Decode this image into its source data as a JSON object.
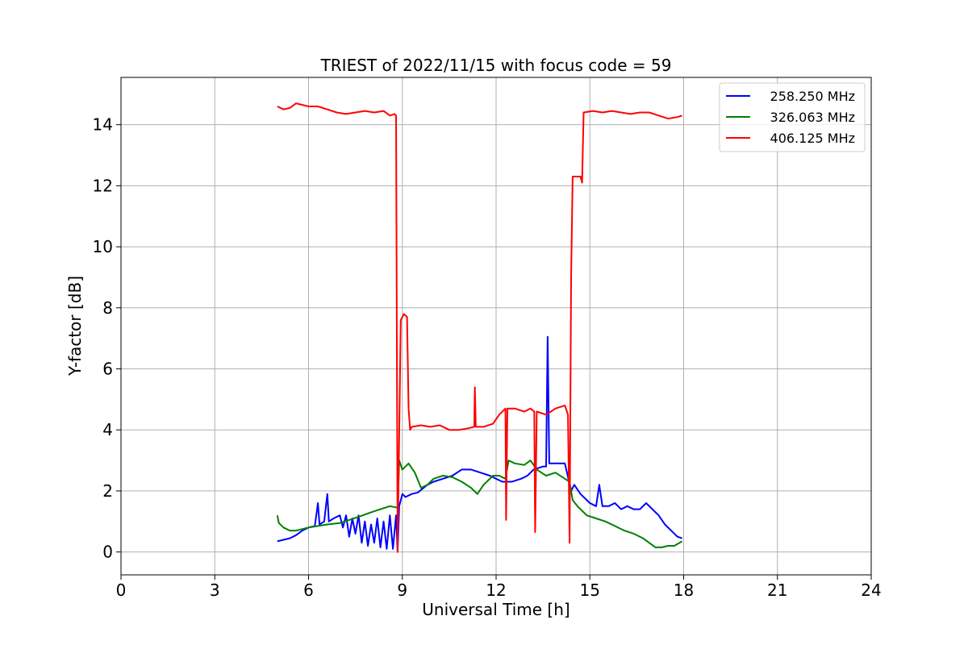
{
  "chart_data": {
    "type": "line",
    "title": "TRIEST of 2022/11/15 with focus code = 59",
    "xlabel": "Universal Time [h]",
    "ylabel": "Y-factor [dB]",
    "xlim": [
      0,
      24
    ],
    "ylim": [
      -0.75,
      15.55
    ],
    "xticks": [
      0,
      3,
      6,
      9,
      12,
      15,
      18,
      21,
      24
    ],
    "yticks": [
      0,
      2,
      4,
      6,
      8,
      10,
      12,
      14
    ],
    "grid": true,
    "legend_position": "top-right",
    "series": [
      {
        "name": "258.250 MHz",
        "color": "#0000ff",
        "points": [
          [
            5.0,
            0.35
          ],
          [
            5.2,
            0.4
          ],
          [
            5.4,
            0.45
          ],
          [
            5.6,
            0.55
          ],
          [
            5.8,
            0.7
          ],
          [
            6.0,
            0.8
          ],
          [
            6.2,
            0.85
          ],
          [
            6.3,
            1.6
          ],
          [
            6.35,
            0.9
          ],
          [
            6.5,
            1.0
          ],
          [
            6.6,
            1.9
          ],
          [
            6.65,
            1.0
          ],
          [
            6.8,
            1.1
          ],
          [
            7.0,
            1.2
          ],
          [
            7.1,
            0.8
          ],
          [
            7.2,
            1.2
          ],
          [
            7.3,
            0.5
          ],
          [
            7.4,
            1.1
          ],
          [
            7.5,
            0.6
          ],
          [
            7.6,
            1.2
          ],
          [
            7.7,
            0.3
          ],
          [
            7.8,
            1.0
          ],
          [
            7.9,
            0.2
          ],
          [
            8.0,
            0.9
          ],
          [
            8.1,
            0.3
          ],
          [
            8.2,
            1.1
          ],
          [
            8.3,
            0.15
          ],
          [
            8.4,
            1.0
          ],
          [
            8.5,
            0.1
          ],
          [
            8.6,
            1.2
          ],
          [
            8.7,
            0.1
          ],
          [
            8.8,
            1.2
          ],
          [
            8.85,
            0.0
          ],
          [
            8.9,
            1.5
          ],
          [
            9.0,
            1.9
          ],
          [
            9.1,
            1.8
          ],
          [
            9.3,
            1.9
          ],
          [
            9.5,
            1.95
          ],
          [
            9.8,
            2.2
          ],
          [
            10.0,
            2.3
          ],
          [
            10.3,
            2.4
          ],
          [
            10.6,
            2.5
          ],
          [
            10.9,
            2.7
          ],
          [
            11.2,
            2.7
          ],
          [
            11.5,
            2.6
          ],
          [
            11.8,
            2.5
          ],
          [
            12.0,
            2.4
          ],
          [
            12.2,
            2.3
          ],
          [
            12.5,
            2.3
          ],
          [
            12.8,
            2.4
          ],
          [
            13.0,
            2.5
          ],
          [
            13.2,
            2.7
          ],
          [
            13.5,
            2.8
          ],
          [
            13.6,
            2.8
          ],
          [
            13.65,
            7.05
          ],
          [
            13.7,
            2.9
          ],
          [
            13.9,
            2.9
          ],
          [
            14.2,
            2.9
          ],
          [
            14.4,
            2.0
          ],
          [
            14.5,
            2.2
          ],
          [
            14.7,
            1.9
          ],
          [
            15.0,
            1.6
          ],
          [
            15.2,
            1.5
          ],
          [
            15.3,
            2.2
          ],
          [
            15.4,
            1.5
          ],
          [
            15.6,
            1.5
          ],
          [
            15.8,
            1.6
          ],
          [
            16.0,
            1.4
          ],
          [
            16.2,
            1.5
          ],
          [
            16.4,
            1.4
          ],
          [
            16.6,
            1.4
          ],
          [
            16.8,
            1.6
          ],
          [
            17.0,
            1.4
          ],
          [
            17.2,
            1.2
          ],
          [
            17.4,
            0.9
          ],
          [
            17.6,
            0.7
          ],
          [
            17.8,
            0.5
          ],
          [
            17.95,
            0.45
          ]
        ]
      },
      {
        "name": "326.063 MHz",
        "color": "#008000",
        "points": [
          [
            5.0,
            1.2
          ],
          [
            5.05,
            0.95
          ],
          [
            5.2,
            0.8
          ],
          [
            5.4,
            0.7
          ],
          [
            5.6,
            0.7
          ],
          [
            5.8,
            0.75
          ],
          [
            6.0,
            0.8
          ],
          [
            6.3,
            0.85
          ],
          [
            6.6,
            0.9
          ],
          [
            7.0,
            0.95
          ],
          [
            7.3,
            1.05
          ],
          [
            7.6,
            1.15
          ],
          [
            8.0,
            1.3
          ],
          [
            8.3,
            1.4
          ],
          [
            8.6,
            1.5
          ],
          [
            8.85,
            1.45
          ],
          [
            8.9,
            3.0
          ],
          [
            9.0,
            2.7
          ],
          [
            9.2,
            2.9
          ],
          [
            9.4,
            2.6
          ],
          [
            9.6,
            2.1
          ],
          [
            9.8,
            2.2
          ],
          [
            10.0,
            2.4
          ],
          [
            10.3,
            2.5
          ],
          [
            10.6,
            2.45
          ],
          [
            10.9,
            2.3
          ],
          [
            11.2,
            2.1
          ],
          [
            11.4,
            1.9
          ],
          [
            11.6,
            2.2
          ],
          [
            11.9,
            2.5
          ],
          [
            12.1,
            2.5
          ],
          [
            12.3,
            2.4
          ],
          [
            12.4,
            3.0
          ],
          [
            12.6,
            2.9
          ],
          [
            12.9,
            2.85
          ],
          [
            13.1,
            3.0
          ],
          [
            13.3,
            2.7
          ],
          [
            13.6,
            2.5
          ],
          [
            13.9,
            2.6
          ],
          [
            14.2,
            2.4
          ],
          [
            14.35,
            2.3
          ],
          [
            14.45,
            1.7
          ],
          [
            14.6,
            1.5
          ],
          [
            14.9,
            1.2
          ],
          [
            15.2,
            1.1
          ],
          [
            15.5,
            1.0
          ],
          [
            15.8,
            0.85
          ],
          [
            16.1,
            0.7
          ],
          [
            16.4,
            0.6
          ],
          [
            16.7,
            0.45
          ],
          [
            16.9,
            0.3
          ],
          [
            17.1,
            0.15
          ],
          [
            17.3,
            0.15
          ],
          [
            17.5,
            0.2
          ],
          [
            17.7,
            0.2
          ],
          [
            17.95,
            0.35
          ]
        ]
      },
      {
        "name": "406.125 MHz",
        "color": "#ff0000",
        "points": [
          [
            5.0,
            14.6
          ],
          [
            5.2,
            14.5
          ],
          [
            5.4,
            14.55
          ],
          [
            5.6,
            14.7
          ],
          [
            5.8,
            14.65
          ],
          [
            6.0,
            14.6
          ],
          [
            6.3,
            14.6
          ],
          [
            6.6,
            14.5
          ],
          [
            6.9,
            14.4
          ],
          [
            7.2,
            14.35
          ],
          [
            7.5,
            14.4
          ],
          [
            7.8,
            14.45
          ],
          [
            8.1,
            14.4
          ],
          [
            8.4,
            14.45
          ],
          [
            8.6,
            14.3
          ],
          [
            8.75,
            14.35
          ],
          [
            8.8,
            14.3
          ],
          [
            8.85,
            0.0
          ],
          [
            8.95,
            7.6
          ],
          [
            9.05,
            7.8
          ],
          [
            9.15,
            7.7
          ],
          [
            9.2,
            4.7
          ],
          [
            9.25,
            4.0
          ],
          [
            9.3,
            4.1
          ],
          [
            9.6,
            4.15
          ],
          [
            9.9,
            4.1
          ],
          [
            10.2,
            4.15
          ],
          [
            10.5,
            4.0
          ],
          [
            10.8,
            4.0
          ],
          [
            11.1,
            4.05
          ],
          [
            11.3,
            4.1
          ],
          [
            11.32,
            5.4
          ],
          [
            11.35,
            4.1
          ],
          [
            11.6,
            4.1
          ],
          [
            11.9,
            4.2
          ],
          [
            12.1,
            4.5
          ],
          [
            12.3,
            4.7
          ],
          [
            12.32,
            1.05
          ],
          [
            12.36,
            4.7
          ],
          [
            12.6,
            4.7
          ],
          [
            12.9,
            4.6
          ],
          [
            13.1,
            4.7
          ],
          [
            13.22,
            4.6
          ],
          [
            13.25,
            0.65
          ],
          [
            13.3,
            4.6
          ],
          [
            13.6,
            4.5
          ],
          [
            13.9,
            4.7
          ],
          [
            14.2,
            4.8
          ],
          [
            14.3,
            4.5
          ],
          [
            14.35,
            0.3
          ],
          [
            14.4,
            9.0
          ],
          [
            14.45,
            12.3
          ],
          [
            14.7,
            12.3
          ],
          [
            14.75,
            12.1
          ],
          [
            14.8,
            14.4
          ],
          [
            15.1,
            14.45
          ],
          [
            15.4,
            14.4
          ],
          [
            15.7,
            14.45
          ],
          [
            16.0,
            14.4
          ],
          [
            16.3,
            14.35
          ],
          [
            16.6,
            14.4
          ],
          [
            16.9,
            14.4
          ],
          [
            17.2,
            14.3
          ],
          [
            17.5,
            14.2
          ],
          [
            17.8,
            14.25
          ],
          [
            17.95,
            14.3
          ]
        ]
      }
    ]
  }
}
